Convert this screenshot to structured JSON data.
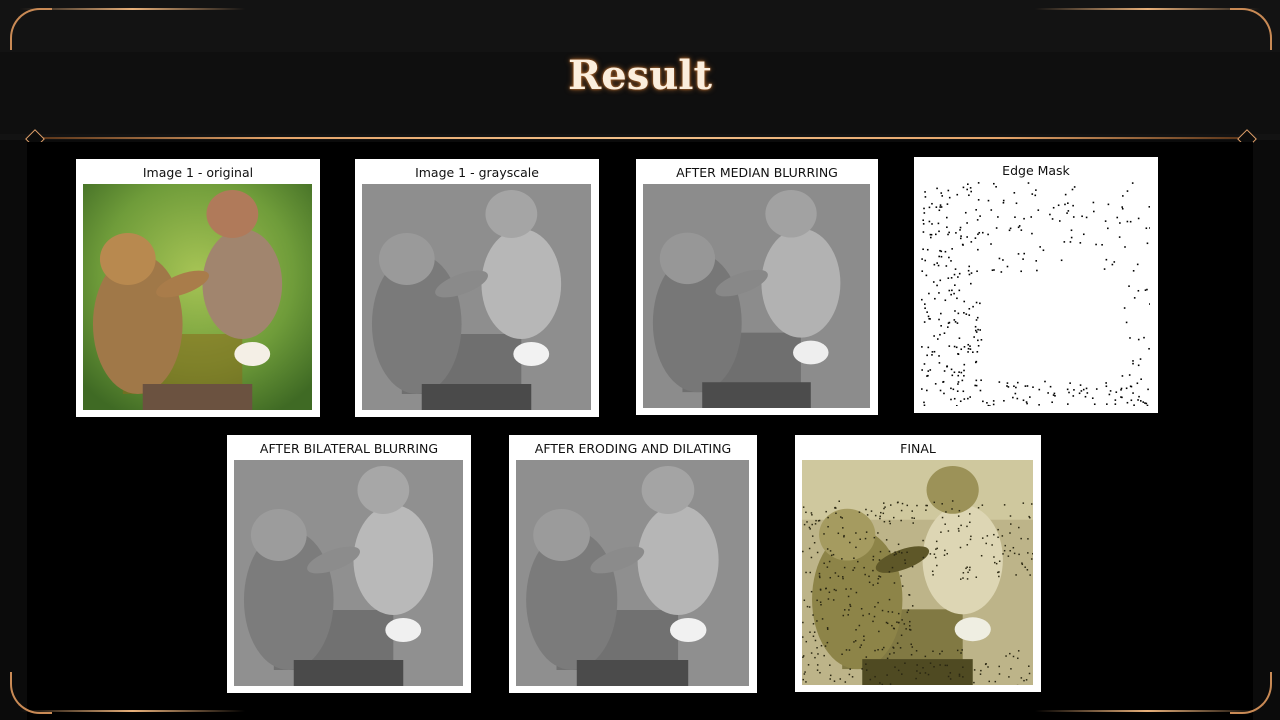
{
  "slide": {
    "title": "Result"
  },
  "panels": [
    {
      "id": "original",
      "label": "Image 1 - original"
    },
    {
      "id": "grayscale",
      "label": "Image 1 - grayscale"
    },
    {
      "id": "median",
      "label": "AFTER MEDIAN BLURRING"
    },
    {
      "id": "edge",
      "label": "Edge Mask"
    },
    {
      "id": "bilateral",
      "label": "AFTER BILATERAL BLURRING"
    },
    {
      "id": "eroding",
      "label": "AFTER ERODING AND DILATING"
    },
    {
      "id": "final",
      "label": "FINAL"
    }
  ],
  "colors": {
    "accent": "#e4a46a",
    "background": "#000000",
    "title": "#fbeedd"
  }
}
